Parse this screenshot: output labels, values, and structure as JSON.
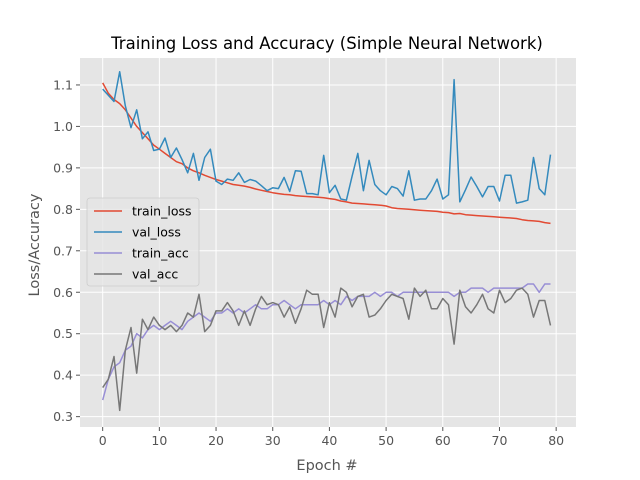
{
  "chart_data": {
    "type": "line",
    "title": "Training Loss and Accuracy (Simple Neural Network)",
    "xlabel": "Epoch #",
    "ylabel": "Loss/Accuracy",
    "xlim": [
      -4,
      83.5
    ],
    "ylim": [
      0.275,
      1.165
    ],
    "xticks": [
      0,
      10,
      20,
      30,
      40,
      50,
      60,
      70,
      80
    ],
    "yticks": [
      0.3,
      0.4,
      0.5,
      0.6,
      0.7,
      0.8,
      0.9,
      1.0,
      1.1
    ],
    "ytick_labels": [
      "0.3",
      "0.4",
      "0.5",
      "0.6",
      "0.7",
      "0.8",
      "0.9",
      "1.0",
      "1.1"
    ],
    "grid": true,
    "style": "ggplot",
    "legend_position": "center-left",
    "x": [
      0,
      1,
      2,
      3,
      4,
      5,
      6,
      7,
      8,
      9,
      10,
      11,
      12,
      13,
      14,
      15,
      16,
      17,
      18,
      19,
      20,
      21,
      22,
      23,
      24,
      25,
      26,
      27,
      28,
      29,
      30,
      31,
      32,
      33,
      34,
      35,
      36,
      37,
      38,
      39,
      40,
      41,
      42,
      43,
      44,
      45,
      46,
      47,
      48,
      49,
      50,
      51,
      52,
      53,
      54,
      55,
      56,
      57,
      58,
      59,
      60,
      61,
      62,
      63,
      64,
      65,
      66,
      67,
      68,
      69,
      70,
      71,
      72,
      73,
      74,
      75,
      76,
      77,
      78,
      79
    ],
    "series": [
      {
        "name": "train_loss",
        "color": "#E24A33",
        "values": [
          1.105,
          1.08,
          1.065,
          1.055,
          1.04,
          1.02,
          1.0,
          0.985,
          0.97,
          0.955,
          0.945,
          0.935,
          0.925,
          0.915,
          0.91,
          0.9,
          0.893,
          0.888,
          0.882,
          0.877,
          0.872,
          0.868,
          0.864,
          0.86,
          0.858,
          0.856,
          0.853,
          0.849,
          0.846,
          0.843,
          0.84,
          0.838,
          0.836,
          0.835,
          0.833,
          0.832,
          0.831,
          0.83,
          0.829,
          0.828,
          0.826,
          0.824,
          0.82,
          0.818,
          0.815,
          0.814,
          0.813,
          0.812,
          0.811,
          0.81,
          0.808,
          0.804,
          0.802,
          0.801,
          0.8,
          0.799,
          0.798,
          0.797,
          0.796,
          0.795,
          0.793,
          0.792,
          0.789,
          0.79,
          0.787,
          0.786,
          0.785,
          0.784,
          0.783,
          0.782,
          0.781,
          0.78,
          0.779,
          0.778,
          0.775,
          0.773,
          0.772,
          0.771,
          0.768,
          0.766
        ]
      },
      {
        "name": "val_loss",
        "color": "#348ABD",
        "values": [
          1.09,
          1.075,
          1.06,
          1.132,
          1.05,
          0.997,
          1.04,
          0.97,
          0.987,
          0.942,
          0.945,
          0.972,
          0.925,
          0.948,
          0.92,
          0.888,
          0.935,
          0.87,
          0.925,
          0.945,
          0.868,
          0.86,
          0.873,
          0.87,
          0.888,
          0.865,
          0.872,
          0.868,
          0.857,
          0.845,
          0.852,
          0.85,
          0.877,
          0.843,
          0.893,
          0.892,
          0.838,
          0.838,
          0.835,
          0.93,
          0.84,
          0.858,
          0.825,
          0.822,
          0.88,
          0.935,
          0.845,
          0.918,
          0.86,
          0.845,
          0.835,
          0.855,
          0.85,
          0.832,
          0.893,
          0.822,
          0.825,
          0.825,
          0.845,
          0.873,
          0.825,
          0.835,
          1.113,
          0.818,
          0.847,
          0.878,
          0.855,
          0.83,
          0.855,
          0.855,
          0.82,
          0.882,
          0.882,
          0.815,
          0.818,
          0.822,
          0.925,
          0.85,
          0.835,
          0.932
        ]
      },
      {
        "name": "train_acc",
        "color": "#988ED5",
        "values": [
          0.34,
          0.39,
          0.42,
          0.43,
          0.46,
          0.47,
          0.5,
          0.49,
          0.51,
          0.52,
          0.51,
          0.52,
          0.53,
          0.52,
          0.51,
          0.53,
          0.54,
          0.55,
          0.54,
          0.53,
          0.55,
          0.55,
          0.56,
          0.55,
          0.56,
          0.55,
          0.56,
          0.57,
          0.56,
          0.56,
          0.57,
          0.57,
          0.58,
          0.57,
          0.56,
          0.57,
          0.57,
          0.57,
          0.57,
          0.58,
          0.57,
          0.58,
          0.57,
          0.59,
          0.58,
          0.59,
          0.59,
          0.59,
          0.6,
          0.59,
          0.6,
          0.6,
          0.59,
          0.6,
          0.6,
          0.6,
          0.6,
          0.6,
          0.6,
          0.6,
          0.6,
          0.6,
          0.59,
          0.6,
          0.6,
          0.61,
          0.61,
          0.61,
          0.6,
          0.61,
          0.61,
          0.61,
          0.61,
          0.61,
          0.61,
          0.62,
          0.62,
          0.6,
          0.62,
          0.62
        ]
      },
      {
        "name": "val_acc",
        "color": "#777777",
        "values": [
          0.37,
          0.39,
          0.445,
          0.315,
          0.46,
          0.515,
          0.405,
          0.535,
          0.51,
          0.54,
          0.52,
          0.51,
          0.52,
          0.505,
          0.52,
          0.55,
          0.54,
          0.595,
          0.505,
          0.52,
          0.555,
          0.555,
          0.575,
          0.555,
          0.52,
          0.555,
          0.52,
          0.56,
          0.59,
          0.57,
          0.575,
          0.57,
          0.54,
          0.565,
          0.525,
          0.56,
          0.605,
          0.595,
          0.595,
          0.515,
          0.575,
          0.54,
          0.61,
          0.6,
          0.565,
          0.59,
          0.595,
          0.54,
          0.545,
          0.56,
          0.58,
          0.595,
          0.59,
          0.585,
          0.535,
          0.61,
          0.59,
          0.605,
          0.56,
          0.56,
          0.585,
          0.57,
          0.475,
          0.605,
          0.565,
          0.55,
          0.57,
          0.595,
          0.56,
          0.55,
          0.605,
          0.575,
          0.585,
          0.605,
          0.61,
          0.595,
          0.54,
          0.58,
          0.58,
          0.52
        ]
      }
    ]
  }
}
